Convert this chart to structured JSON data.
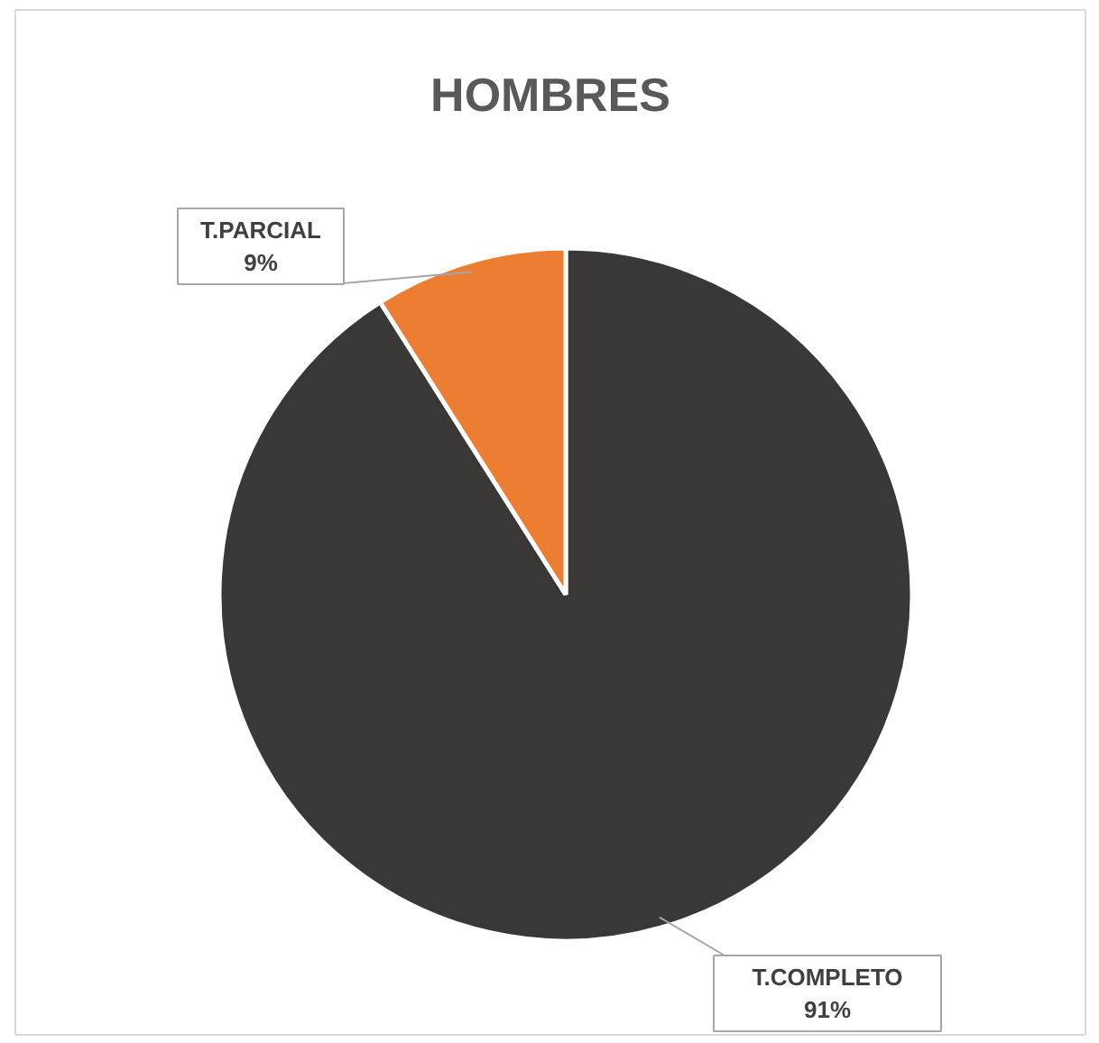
{
  "chart_data": {
    "type": "pie",
    "title": "HOMBRES",
    "categories": [
      "T.COMPLETO",
      "T.PARCIAL"
    ],
    "values": [
      91,
      9
    ],
    "colors": [
      "#3a3836",
      "#ed7d31"
    ],
    "value_labels": [
      "91%",
      "9%"
    ]
  }
}
